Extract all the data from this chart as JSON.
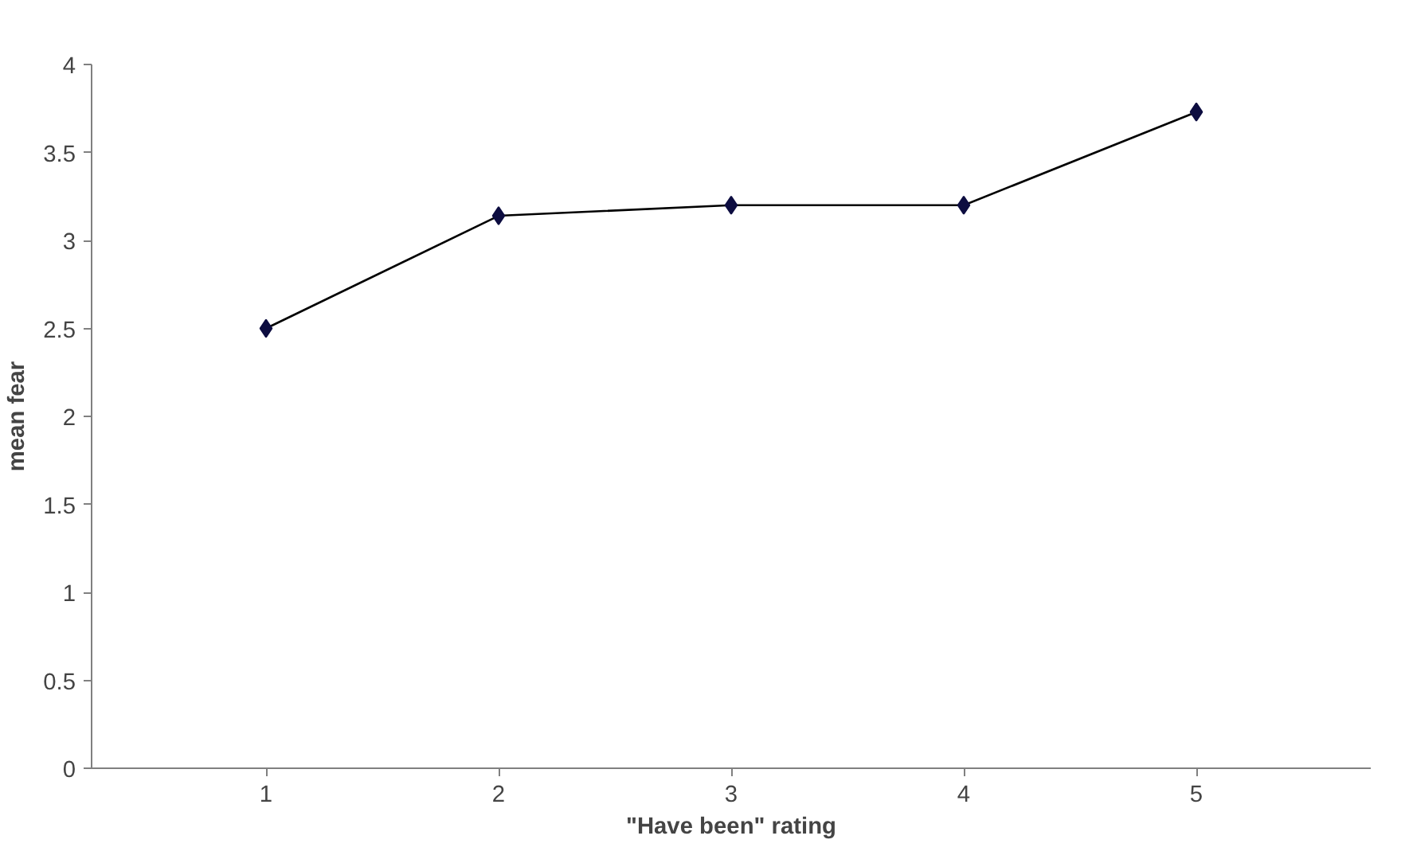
{
  "chart_data": {
    "type": "line",
    "xlabel": "\"Have been\" rating",
    "ylabel": "mean fear",
    "categories": [
      "1",
      "2",
      "3",
      "4",
      "5"
    ],
    "series": [
      {
        "color": "#0d0d40",
        "values": [
          2.5,
          3.14,
          3.2,
          3.2,
          3.73
        ]
      }
    ],
    "ylim": [
      0,
      4
    ],
    "yticks": [
      0,
      0.5,
      1,
      1.5,
      2,
      2.5,
      3,
      3.5,
      4
    ],
    "marker": "diamond",
    "line_style": "solid"
  }
}
